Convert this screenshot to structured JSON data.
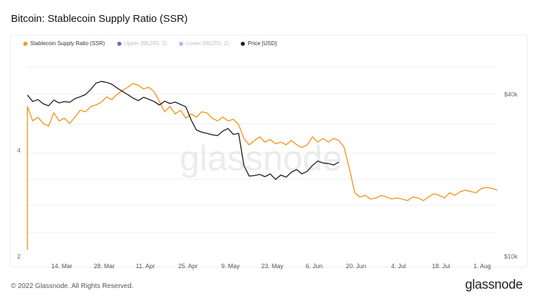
{
  "title": "Bitcoin: Stablecoin Supply Ratio (SSR)",
  "footer": "© 2022 Glassnode. All Rights Reserved.",
  "brand": "glassnode",
  "watermark": "glassnode",
  "legend": [
    {
      "label": "Stablecoin Supply Ratio (SSR)",
      "color": "#f7931a",
      "muted": false
    },
    {
      "label": "Upper BB(200, 2)",
      "color": "#6c63d9",
      "muted": true
    },
    {
      "label": "Lower BB(200, 2)",
      "color": "#b9b4f0",
      "muted": true
    },
    {
      "label": "Price [USD]",
      "color": "#222222",
      "muted": false
    }
  ],
  "chart_data": {
    "type": "line",
    "x_tick_labels": [
      "14. Mar",
      "28. Mar",
      "11. Apr",
      "25. Apr",
      "9. May",
      "23. May",
      "6. Jun",
      "20. Jun",
      "4. Jul",
      "18. Jul",
      "1. Aug"
    ],
    "y_left_tick_labels": [
      "2",
      "4"
    ],
    "y_right_tick_labels": [
      "$10k",
      "$40k"
    ],
    "y_right_scale": "log",
    "series": [
      {
        "name": "Stablecoin Supply Ratio (SSR)",
        "axis": "left",
        "color": "#f7931a",
        "points": [
          [
            0,
            4.82
          ],
          [
            2,
            4.55
          ],
          [
            4,
            4.62
          ],
          [
            6,
            4.5
          ],
          [
            8,
            4.45
          ],
          [
            10,
            4.7
          ],
          [
            12,
            4.55
          ],
          [
            14,
            4.6
          ],
          [
            16,
            4.5
          ],
          [
            18,
            4.62
          ],
          [
            20,
            4.75
          ],
          [
            22,
            4.72
          ],
          [
            24,
            4.82
          ],
          [
            26,
            4.85
          ],
          [
            28,
            4.9
          ],
          [
            30,
            5.0
          ],
          [
            32,
            4.95
          ],
          [
            34,
            5.05
          ],
          [
            36,
            5.12
          ],
          [
            38,
            5.18
          ],
          [
            40,
            5.25
          ],
          [
            42,
            5.22
          ],
          [
            44,
            5.15
          ],
          [
            46,
            5.18
          ],
          [
            48,
            5.1
          ],
          [
            50,
            4.92
          ],
          [
            52,
            4.72
          ],
          [
            54,
            4.82
          ],
          [
            56,
            4.68
          ],
          [
            58,
            4.75
          ],
          [
            60,
            4.6
          ],
          [
            62,
            4.68
          ],
          [
            64,
            4.62
          ],
          [
            66,
            4.72
          ],
          [
            68,
            4.7
          ],
          [
            70,
            4.6
          ],
          [
            72,
            4.55
          ],
          [
            74,
            4.62
          ],
          [
            76,
            4.55
          ],
          [
            78,
            4.58
          ],
          [
            80,
            4.48
          ],
          [
            82,
            4.22
          ],
          [
            84,
            4.1
          ],
          [
            86,
            4.18
          ],
          [
            88,
            4.25
          ],
          [
            90,
            4.15
          ],
          [
            92,
            4.2
          ],
          [
            94,
            4.12
          ],
          [
            96,
            4.15
          ],
          [
            98,
            4.1
          ],
          [
            100,
            4.18
          ],
          [
            102,
            4.1
          ],
          [
            104,
            4.05
          ],
          [
            106,
            4.1
          ],
          [
            108,
            4.25
          ],
          [
            110,
            4.15
          ],
          [
            112,
            4.22
          ],
          [
            114,
            4.15
          ],
          [
            116,
            4.22
          ],
          [
            118,
            4.18
          ],
          [
            120,
            4.05
          ],
          [
            122,
            3.65
          ],
          [
            124,
            3.2
          ],
          [
            126,
            3.12
          ],
          [
            128,
            3.15
          ],
          [
            130,
            3.08
          ],
          [
            132,
            3.1
          ],
          [
            134,
            3.15
          ],
          [
            136,
            3.12
          ],
          [
            138,
            3.08
          ],
          [
            140,
            3.1
          ],
          [
            142,
            3.08
          ],
          [
            144,
            3.05
          ],
          [
            146,
            3.12
          ],
          [
            148,
            3.1
          ],
          [
            150,
            3.05
          ],
          [
            152,
            3.12
          ],
          [
            154,
            3.18
          ],
          [
            156,
            3.15
          ],
          [
            158,
            3.1
          ],
          [
            160,
            3.2
          ],
          [
            162,
            3.15
          ],
          [
            164,
            3.22
          ],
          [
            166,
            3.25
          ],
          [
            168,
            3.22
          ],
          [
            170,
            3.2
          ],
          [
            172,
            3.28
          ],
          [
            174,
            3.3
          ],
          [
            176,
            3.28
          ],
          [
            178,
            3.25
          ]
        ]
      },
      {
        "name": "Price [USD]",
        "axis": "right",
        "color": "#222222",
        "points": [
          [
            0,
            41800
          ],
          [
            2,
            39500
          ],
          [
            4,
            40200
          ],
          [
            6,
            38700
          ],
          [
            8,
            38000
          ],
          [
            10,
            40000
          ],
          [
            12,
            39000
          ],
          [
            14,
            39500
          ],
          [
            16,
            39200
          ],
          [
            18,
            40500
          ],
          [
            20,
            41200
          ],
          [
            22,
            42000
          ],
          [
            24,
            44000
          ],
          [
            26,
            46500
          ],
          [
            28,
            47200
          ],
          [
            30,
            46800
          ],
          [
            32,
            46000
          ],
          [
            34,
            44500
          ],
          [
            36,
            43200
          ],
          [
            38,
            42000
          ],
          [
            40,
            40700
          ],
          [
            42,
            39800
          ],
          [
            44,
            41000
          ],
          [
            46,
            40300
          ],
          [
            48,
            39500
          ],
          [
            50,
            38300
          ],
          [
            52,
            39600
          ],
          [
            54,
            38800
          ],
          [
            56,
            39300
          ],
          [
            58,
            38500
          ],
          [
            60,
            37700
          ],
          [
            62,
            33600
          ],
          [
            64,
            30700
          ],
          [
            66,
            30100
          ],
          [
            68,
            29800
          ],
          [
            70,
            29400
          ],
          [
            72,
            29200
          ],
          [
            74,
            30400
          ],
          [
            76,
            31100
          ],
          [
            78,
            29500
          ],
          [
            80,
            29800
          ],
          [
            82,
            22400
          ],
          [
            84,
            20400
          ],
          [
            86,
            20500
          ],
          [
            88,
            20700
          ],
          [
            90,
            20300
          ],
          [
            92,
            20800
          ],
          [
            94,
            19800
          ],
          [
            96,
            20600
          ],
          [
            98,
            20200
          ],
          [
            100,
            21100
          ],
          [
            102,
            21600
          ],
          [
            104,
            20800
          ],
          [
            106,
            21300
          ],
          [
            108,
            22400
          ],
          [
            110,
            23300
          ],
          [
            112,
            22900
          ],
          [
            114,
            22800
          ],
          [
            116,
            22500
          ],
          [
            118,
            23100
          ]
        ]
      }
    ],
    "legend_position": "top-left",
    "grid": true
  }
}
